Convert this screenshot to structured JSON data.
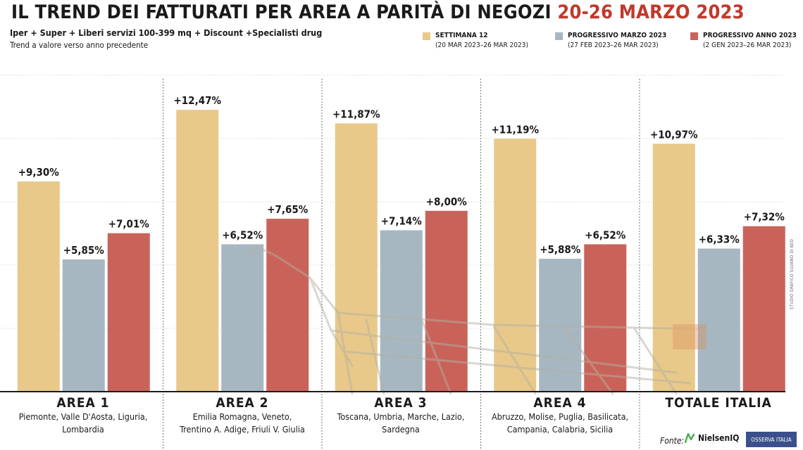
{
  "header": {
    "title_main": "IL TREND DEI FATTURATI PER AREA A PARITÀ DI NEGOZI",
    "title_accent": "20-26 MARZO 2023",
    "subtitle": "Iper + Super + Liberi servizi 100-399 mq + Discount +Specialisti drug",
    "note": "Trend a valore verso anno precedente"
  },
  "legend": [
    {
      "title": "SETTIMANA 12",
      "detail": "(20 MAR 2023–26 MAR 2023)",
      "color": "#e8c98a"
    },
    {
      "title": "PROGRESSIVO MARZO 2023",
      "detail": "(27 FEB 2023–26 MAR 2023)",
      "color": "#a7b7c2"
    },
    {
      "title": "PROGRESSIVO ANNO 2023",
      "detail": "(2 GEN 2023–26 MAR 2023)",
      "color": "#c9635a"
    }
  ],
  "chart_data": {
    "type": "bar",
    "title": "IL TREND DEI FATTURATI PER AREA A PARITÀ DI NEGOZI 20-26 MARZO 2023",
    "ylim": [
      0,
      14
    ],
    "grid": true,
    "categories": [
      "AREA 1",
      "AREA 2",
      "AREA 3",
      "AREA 4",
      "TOTALE ITALIA"
    ],
    "regions": [
      "Piemonte, Valle D'Aosta, Liguria, Lombardia",
      "Emilia Romagna, Veneto, Trentino A. Adige, Friuli V. Giulia",
      "Toscana, Umbria, Marche, Lazio, Sardegna",
      "Abruzzo, Molise, Puglia, Basilicata, Campania, Calabria, Sicilia",
      ""
    ],
    "series": [
      {
        "name": "SETTIMANA 12",
        "values": [
          9.3,
          12.47,
          11.87,
          11.19,
          10.97
        ],
        "labels": [
          "+9,30%",
          "+12,47%",
          "+11,87%",
          "+11,19%",
          "+10,97%"
        ],
        "color": "#e8c98a"
      },
      {
        "name": "PROGRESSIVO MARZO 2023",
        "values": [
          5.85,
          6.52,
          7.14,
          5.88,
          6.33
        ],
        "labels": [
          "+5,85%",
          "+6,52%",
          "+7,14%",
          "+5,88%",
          "+6,33%"
        ],
        "color": "#a7b7c2"
      },
      {
        "name": "PROGRESSIVO ANNO 2023",
        "values": [
          7.01,
          7.65,
          8.0,
          6.52,
          7.32
        ],
        "labels": [
          "+7,01%",
          "+7,65%",
          "+8,00%",
          "+6,52%",
          "+7,32%"
        ],
        "color": "#c9635a"
      }
    ]
  },
  "areas": [
    {
      "name": "AREA 1",
      "regions_line1": "Piemonte, Valle D'Aosta, Liguria,",
      "regions_line2": "Lombardia"
    },
    {
      "name": "AREA 2",
      "regions_line1": "Emilia Romagna, Veneto,",
      "regions_line2": "Trentino A. Adige, Friuli V. Giulia"
    },
    {
      "name": "AREA 3",
      "regions_line1": "Toscana, Umbria, Marche, Lazio,",
      "regions_line2": "Sardegna"
    },
    {
      "name": "AREA 4",
      "regions_line1": "Abruzzo, Molise, Puglia, Basilicata,",
      "regions_line2": "Campania, Calabria, Sicilia"
    },
    {
      "name": "TOTALE ITALIA",
      "regions_line1": "",
      "regions_line2": ""
    }
  ],
  "footer": {
    "credit": "STUDIO GRAFICO SILVANO DI BEO",
    "source_label": "Fonte:",
    "nielsen": "NielsenIQ",
    "osserva": "OSSERVA ITALIA"
  }
}
